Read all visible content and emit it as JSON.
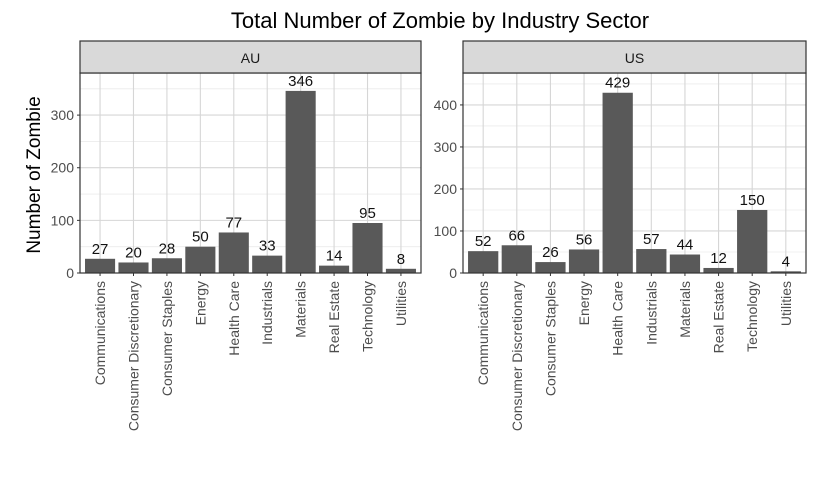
{
  "chart_data": {
    "type": "bar",
    "title": "Total Number of Zombie by Industry Sector",
    "xlabel": "",
    "ylabel": "Number of Zombie",
    "categories": [
      "Communications",
      "Consumer Discretionary",
      "Consumer Staples",
      "Energy",
      "Health Care",
      "Industrials",
      "Materials",
      "Real Estate",
      "Technology",
      "Utilities"
    ],
    "panels": [
      {
        "name": "AU",
        "values": [
          27,
          20,
          28,
          50,
          77,
          33,
          346,
          14,
          95,
          8
        ],
        "yticks": [
          0,
          100,
          200,
          300
        ],
        "ylim": [
          0,
          380
        ]
      },
      {
        "name": "US",
        "values": [
          52,
          66,
          26,
          56,
          429,
          57,
          44,
          12,
          150,
          4
        ],
        "yticks": [
          0,
          100,
          200,
          300,
          400
        ],
        "ylim": [
          0,
          476
        ]
      }
    ],
    "grid": true,
    "bar_color": "#595959",
    "strip_color": "#d9d9d9"
  }
}
